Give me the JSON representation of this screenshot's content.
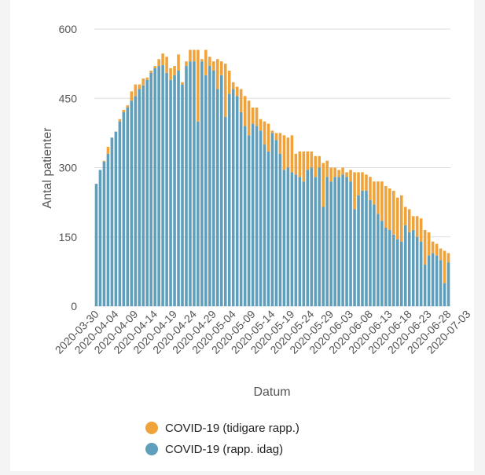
{
  "chart_data": {
    "type": "bar",
    "stacked": true,
    "xlabel": "Datum",
    "ylabel": "Antal patienter",
    "ylim": [
      0,
      600
    ],
    "yticks": [
      0,
      150,
      300,
      450,
      600
    ],
    "grid": true,
    "legend_position": "bottom",
    "x_start": "2020-03-30",
    "x_tick_labels": [
      "2020-03-30",
      "2020-04-04",
      "2020-04-09",
      "2020-04-14",
      "2020-04-19",
      "2020-04-24",
      "2020-04-29",
      "2020-05-04",
      "2020-05-09",
      "2020-05-14",
      "2020-05-19",
      "2020-05-24",
      "2020-05-29",
      "2020-06-03",
      "2020-06-08",
      "2020-06-13",
      "2020-06-18",
      "2020-06-23",
      "2020-06-28",
      "2020-07-03"
    ],
    "series": [
      {
        "name": "COVID-19 (rapp. idag)",
        "color": "#5f9fbb",
        "values": [
          265,
          295,
          313,
          330,
          365,
          378,
          400,
          420,
          430,
          445,
          455,
          470,
          478,
          490,
          505,
          515,
          520,
          522,
          505,
          490,
          500,
          510,
          480,
          520,
          530,
          530,
          400,
          530,
          500,
          520,
          510,
          470,
          500,
          410,
          460,
          470,
          455,
          420,
          390,
          370,
          395,
          390,
          380,
          350,
          335,
          375,
          360,
          330,
          295,
          300,
          290,
          285,
          280,
          270,
          295,
          300,
          280,
          300,
          215,
          280,
          270,
          280,
          280,
          285,
          280,
          270,
          210,
          240,
          250,
          250,
          230,
          220,
          200,
          185,
          170,
          165,
          155,
          145,
          140,
          175,
          160,
          165,
          150,
          140,
          90,
          110,
          115,
          110,
          100,
          50,
          95
        ]
      },
      {
        "name": "COVID-19 (tidigare rapp.)",
        "color": "#f0a33a",
        "values": [
          0,
          0,
          2,
          15,
          0,
          0,
          5,
          5,
          5,
          20,
          25,
          10,
          15,
          5,
          5,
          5,
          15,
          25,
          35,
          25,
          20,
          35,
          5,
          10,
          25,
          25,
          155,
          5,
          55,
          20,
          20,
          65,
          30,
          115,
          50,
          15,
          20,
          50,
          65,
          75,
          35,
          40,
          25,
          50,
          60,
          5,
          15,
          45,
          75,
          65,
          80,
          45,
          55,
          65,
          40,
          35,
          45,
          25,
          95,
          35,
          30,
          20,
          15,
          15,
          10,
          25,
          80,
          50,
          40,
          35,
          50,
          50,
          70,
          85,
          90,
          90,
          95,
          90,
          100,
          40,
          50,
          30,
          45,
          50,
          75,
          50,
          25,
          25,
          25,
          70,
          20
        ]
      }
    ]
  }
}
